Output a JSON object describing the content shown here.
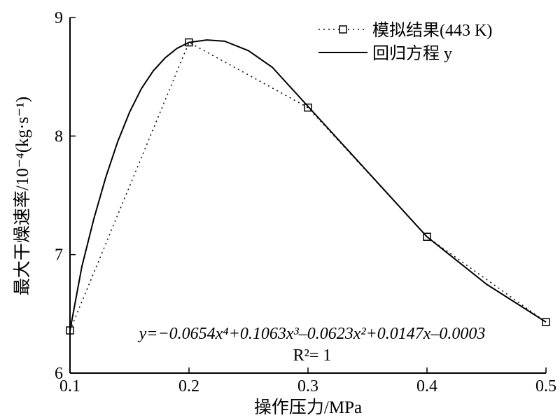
{
  "chart_data": {
    "type": "line",
    "title": "",
    "xlabel": "操作压力/MPa",
    "ylabel": "最大干燥速率/10⁻⁴(kg·s⁻¹)",
    "xlim": [
      0.1,
      0.5
    ],
    "ylim": [
      6,
      9
    ],
    "xticks": [
      "0.1",
      "0.2",
      "0.3",
      "0.4",
      "0.5"
    ],
    "yticks": [
      "6",
      "7",
      "8",
      "9"
    ],
    "grid": false,
    "legend_position": "top-right",
    "series": [
      {
        "name": "模拟结果(443 K)",
        "style": "dotted-square-markers",
        "x": [
          0.1,
          0.2,
          0.3,
          0.4,
          0.5
        ],
        "y": [
          6.36,
          8.79,
          8.24,
          7.15,
          6.43
        ]
      },
      {
        "name": "回归方程 y",
        "style": "solid",
        "x": [
          0.1,
          0.11,
          0.12,
          0.13,
          0.14,
          0.15,
          0.16,
          0.17,
          0.18,
          0.19,
          0.2,
          0.215,
          0.23,
          0.25,
          0.27,
          0.3,
          0.35,
          0.4,
          0.45,
          0.5
        ],
        "y": [
          6.36,
          6.9,
          7.3,
          7.65,
          7.95,
          8.2,
          8.4,
          8.55,
          8.66,
          8.74,
          8.79,
          8.81,
          8.8,
          8.72,
          8.58,
          8.25,
          7.7,
          7.15,
          6.75,
          6.43
        ]
      }
    ],
    "annotations": {
      "equation": "y=−0.0654x⁴+0.1063x³–0.0623x²+0.0147x–0.0003",
      "r2": "R²= 1"
    }
  }
}
